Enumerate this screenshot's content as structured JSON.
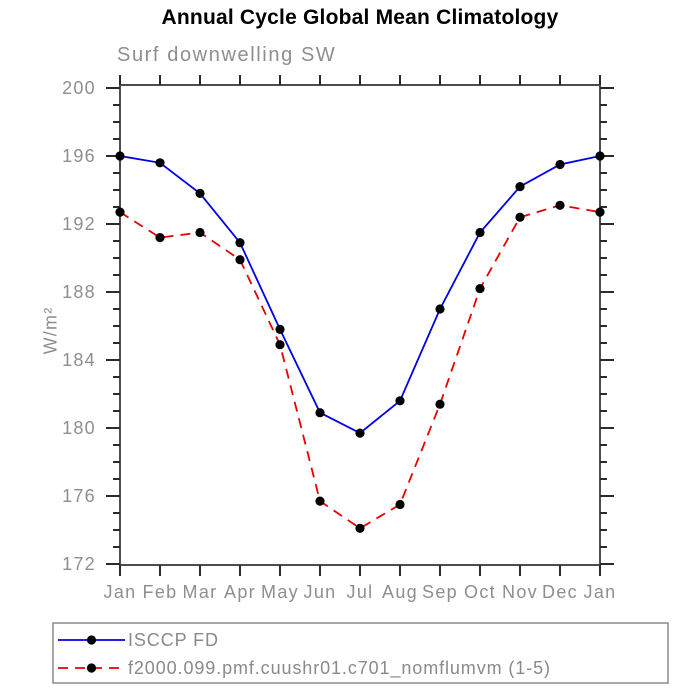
{
  "chart_data": {
    "type": "line",
    "title": "Annual Cycle Global Mean Climatology",
    "subtitle": "Surf downwelling SW",
    "xlabel": "",
    "ylabel": "W/m²",
    "x_tick_labels": [
      "Jan",
      "Feb",
      "Mar",
      "Apr",
      "May",
      "Jun",
      "Jul",
      "Aug",
      "Sep",
      "Oct",
      "Nov",
      "Dec",
      "Jan"
    ],
    "y_axis": {
      "min": 172,
      "max": 200,
      "major_tick_step": 4,
      "minor_tick_step": 1,
      "major_tick_labels": [
        "172",
        "176",
        "180",
        "184",
        "188",
        "192",
        "196",
        "200"
      ]
    },
    "grid": false,
    "legend_position": "bottom-left-box",
    "series": [
      {
        "name": "ISCCP FD",
        "color": "#0000e6",
        "line_style": "solid",
        "marker": "filled-circle",
        "marker_color": "#000000",
        "values": [
          196.0,
          195.6,
          193.8,
          190.9,
          185.8,
          180.9,
          179.7,
          181.6,
          187.0,
          191.5,
          194.2,
          195.5,
          196.0
        ]
      },
      {
        "name": "f2000.099.pmf.cuushr01.c701_nomflumvm (1-5)",
        "color": "#e60000",
        "line_style": "dashed",
        "marker": "filled-circle",
        "marker_color": "#000000",
        "values": [
          192.7,
          191.2,
          191.5,
          189.9,
          184.9,
          175.7,
          174.1,
          175.5,
          181.4,
          188.2,
          192.4,
          193.1,
          192.7
        ]
      }
    ]
  },
  "colors": {
    "frame": "#4d4d4d",
    "ticks": "#2b2b2b",
    "axis_text": "#8e8e8e",
    "title_text": "#000000",
    "legend_border": "#8c8c8c",
    "background": "#ffffff"
  }
}
